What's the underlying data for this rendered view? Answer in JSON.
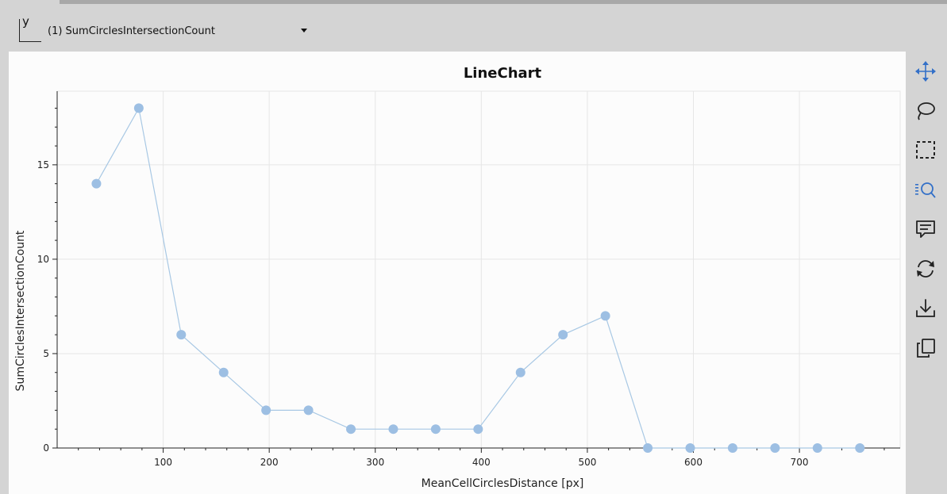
{
  "axis_selector": {
    "axis_letter": "y",
    "selected_value": "(1) SumCirclesIntersectionCount"
  },
  "toolbar": {
    "tools": [
      {
        "icon": "move-icon",
        "active": true
      },
      {
        "icon": "lasso-icon",
        "active": false
      },
      {
        "icon": "box-select-icon",
        "active": false
      },
      {
        "icon": "wheel-zoom-icon",
        "active": true
      },
      {
        "icon": "hover-icon",
        "active": false
      },
      {
        "icon": "reset-icon",
        "active": false
      },
      {
        "icon": "save-icon",
        "active": false
      },
      {
        "icon": "copy-icon",
        "active": false
      }
    ],
    "active_color": "#3370c8",
    "inactive_color": "#222222"
  },
  "chart_data": {
    "type": "line",
    "title": "LineChart",
    "xlabel": "MeanCellCirclesDistance [px]",
    "ylabel": "SumCirclesIntersectionCount",
    "xlim": [
      0,
      795
    ],
    "ylim": [
      0,
      18.9
    ],
    "x_ticks": [
      100,
      200,
      300,
      400,
      500,
      600,
      700
    ],
    "y_ticks": [
      0,
      5,
      10,
      15
    ],
    "grid": true,
    "line_color": "#a8c8e4",
    "point_color": "#9dbfe3",
    "series": [
      {
        "x": [
          37,
          77,
          117,
          157,
          197,
          237,
          277,
          317,
          357,
          397,
          437,
          477,
          517,
          557,
          597,
          637,
          677,
          717,
          757
        ],
        "values": [
          14,
          18,
          6,
          4,
          2,
          2,
          1,
          1,
          1,
          1,
          4,
          6,
          7,
          0,
          0,
          0,
          0,
          0,
          0
        ]
      }
    ]
  }
}
